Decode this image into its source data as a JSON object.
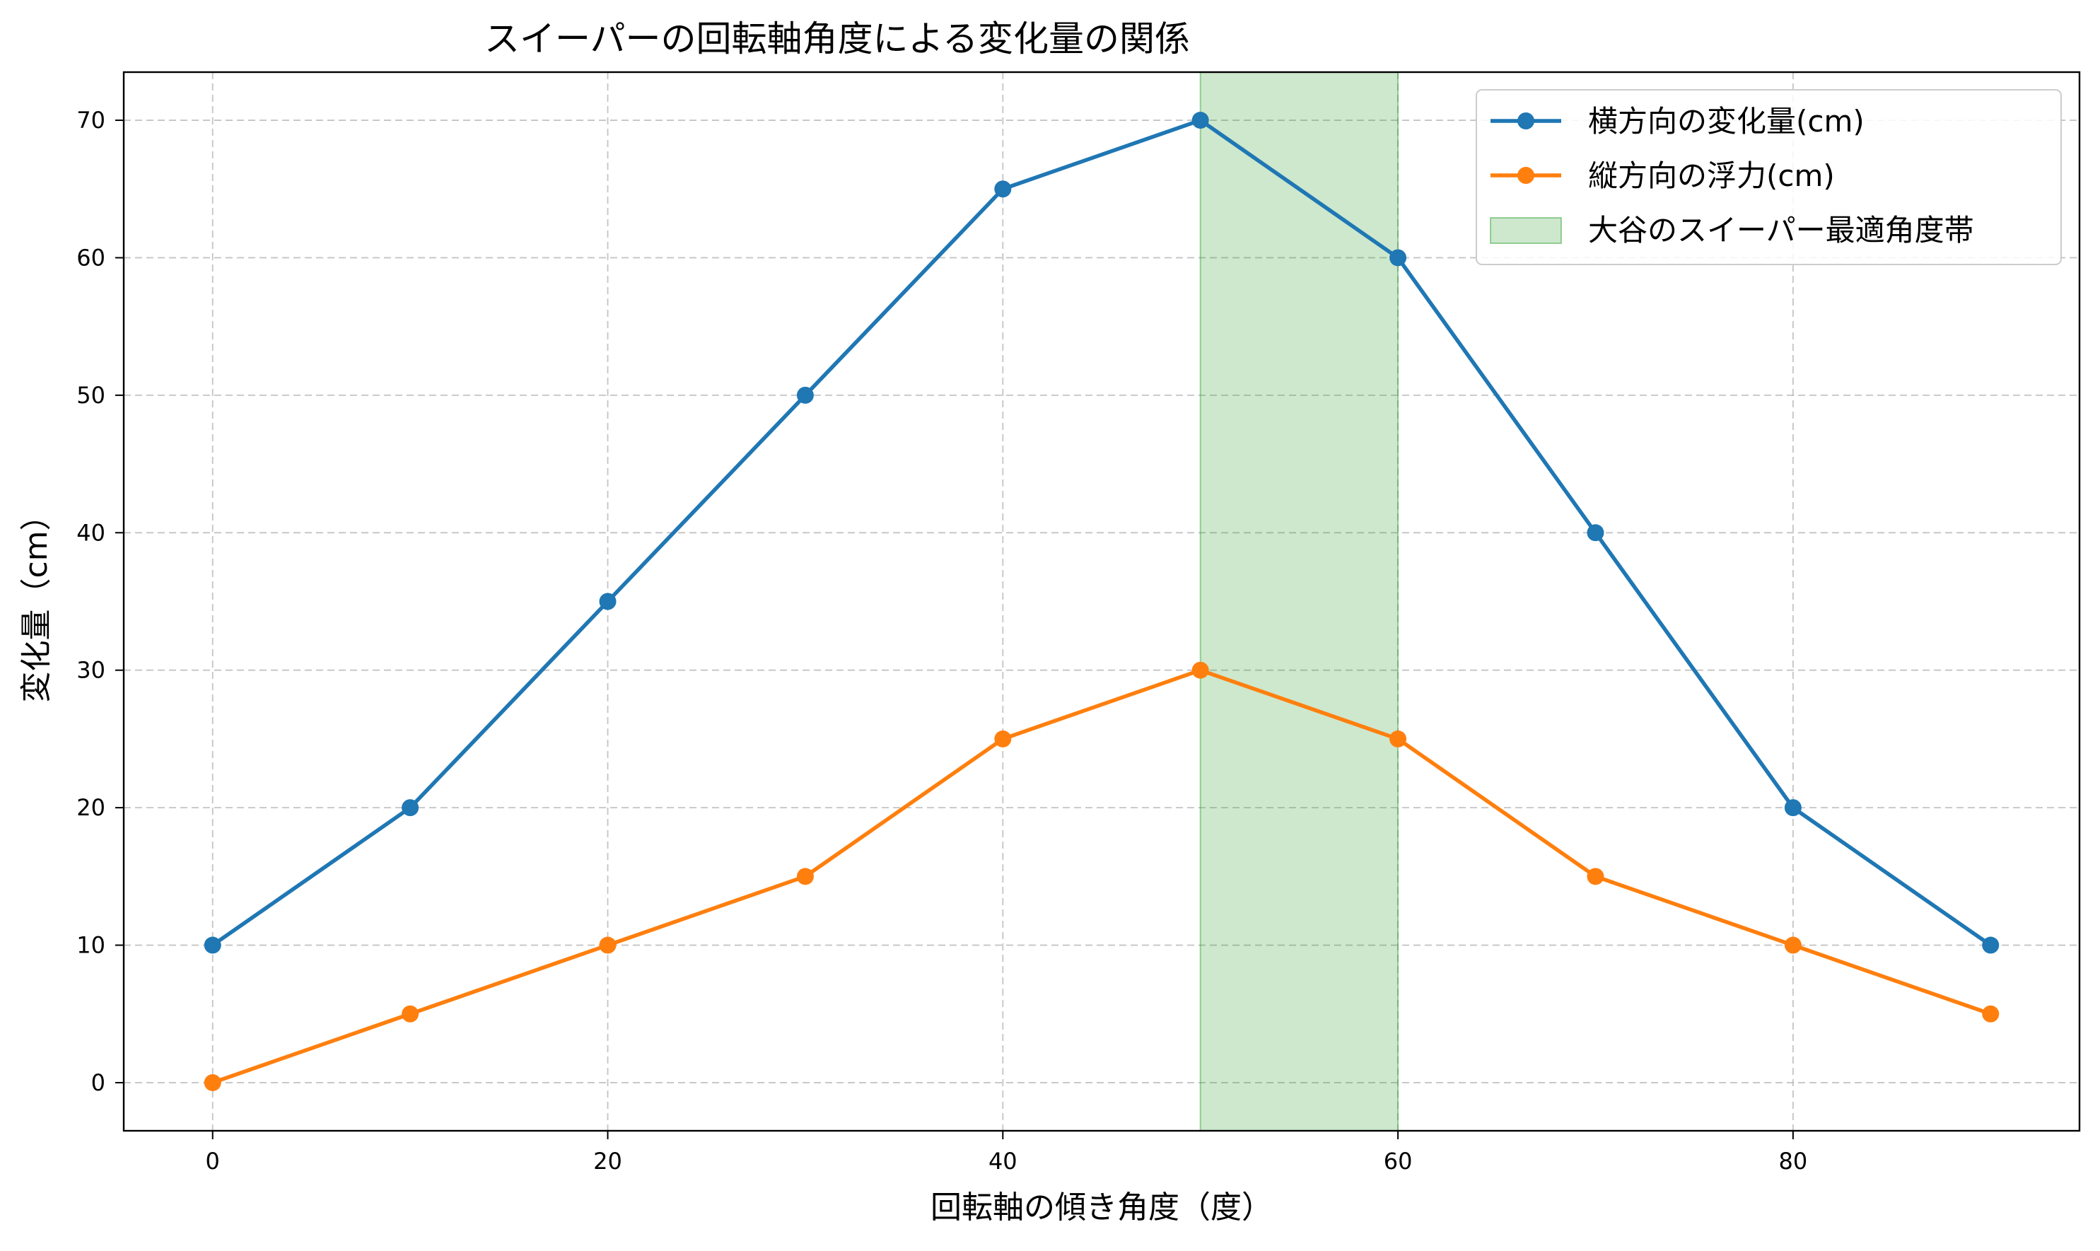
{
  "chart_data": {
    "type": "line",
    "title": "スイーパーの回転軸角度による変化量の関係",
    "xlabel": "回転軸の傾き角度（度）",
    "ylabel": "変化量（cm）",
    "xlim": [
      -4.5,
      94.5
    ],
    "ylim": [
      -3.5,
      73.5
    ],
    "x_ticks": [
      0,
      20,
      40,
      60,
      80
    ],
    "y_ticks": [
      0,
      10,
      20,
      30,
      40,
      50,
      60,
      70
    ],
    "grid": true,
    "legend_position": "upper right",
    "x": [
      0,
      10,
      20,
      30,
      40,
      50,
      60,
      70,
      80,
      90
    ],
    "series": [
      {
        "name": "横方向の変化量(cm)",
        "color": "#1f77b4",
        "values": [
          10,
          20,
          35,
          50,
          65,
          70,
          60,
          40,
          20,
          10
        ]
      },
      {
        "name": "縦方向の浮力(cm)",
        "color": "#ff7f0e",
        "values": [
          0,
          5,
          10,
          15,
          25,
          30,
          25,
          15,
          10,
          5
        ]
      }
    ],
    "shaded_region": {
      "name": "大谷のスイーパー最適角度帯",
      "x_start": 50,
      "x_end": 60,
      "color": "#2ca02c"
    }
  }
}
